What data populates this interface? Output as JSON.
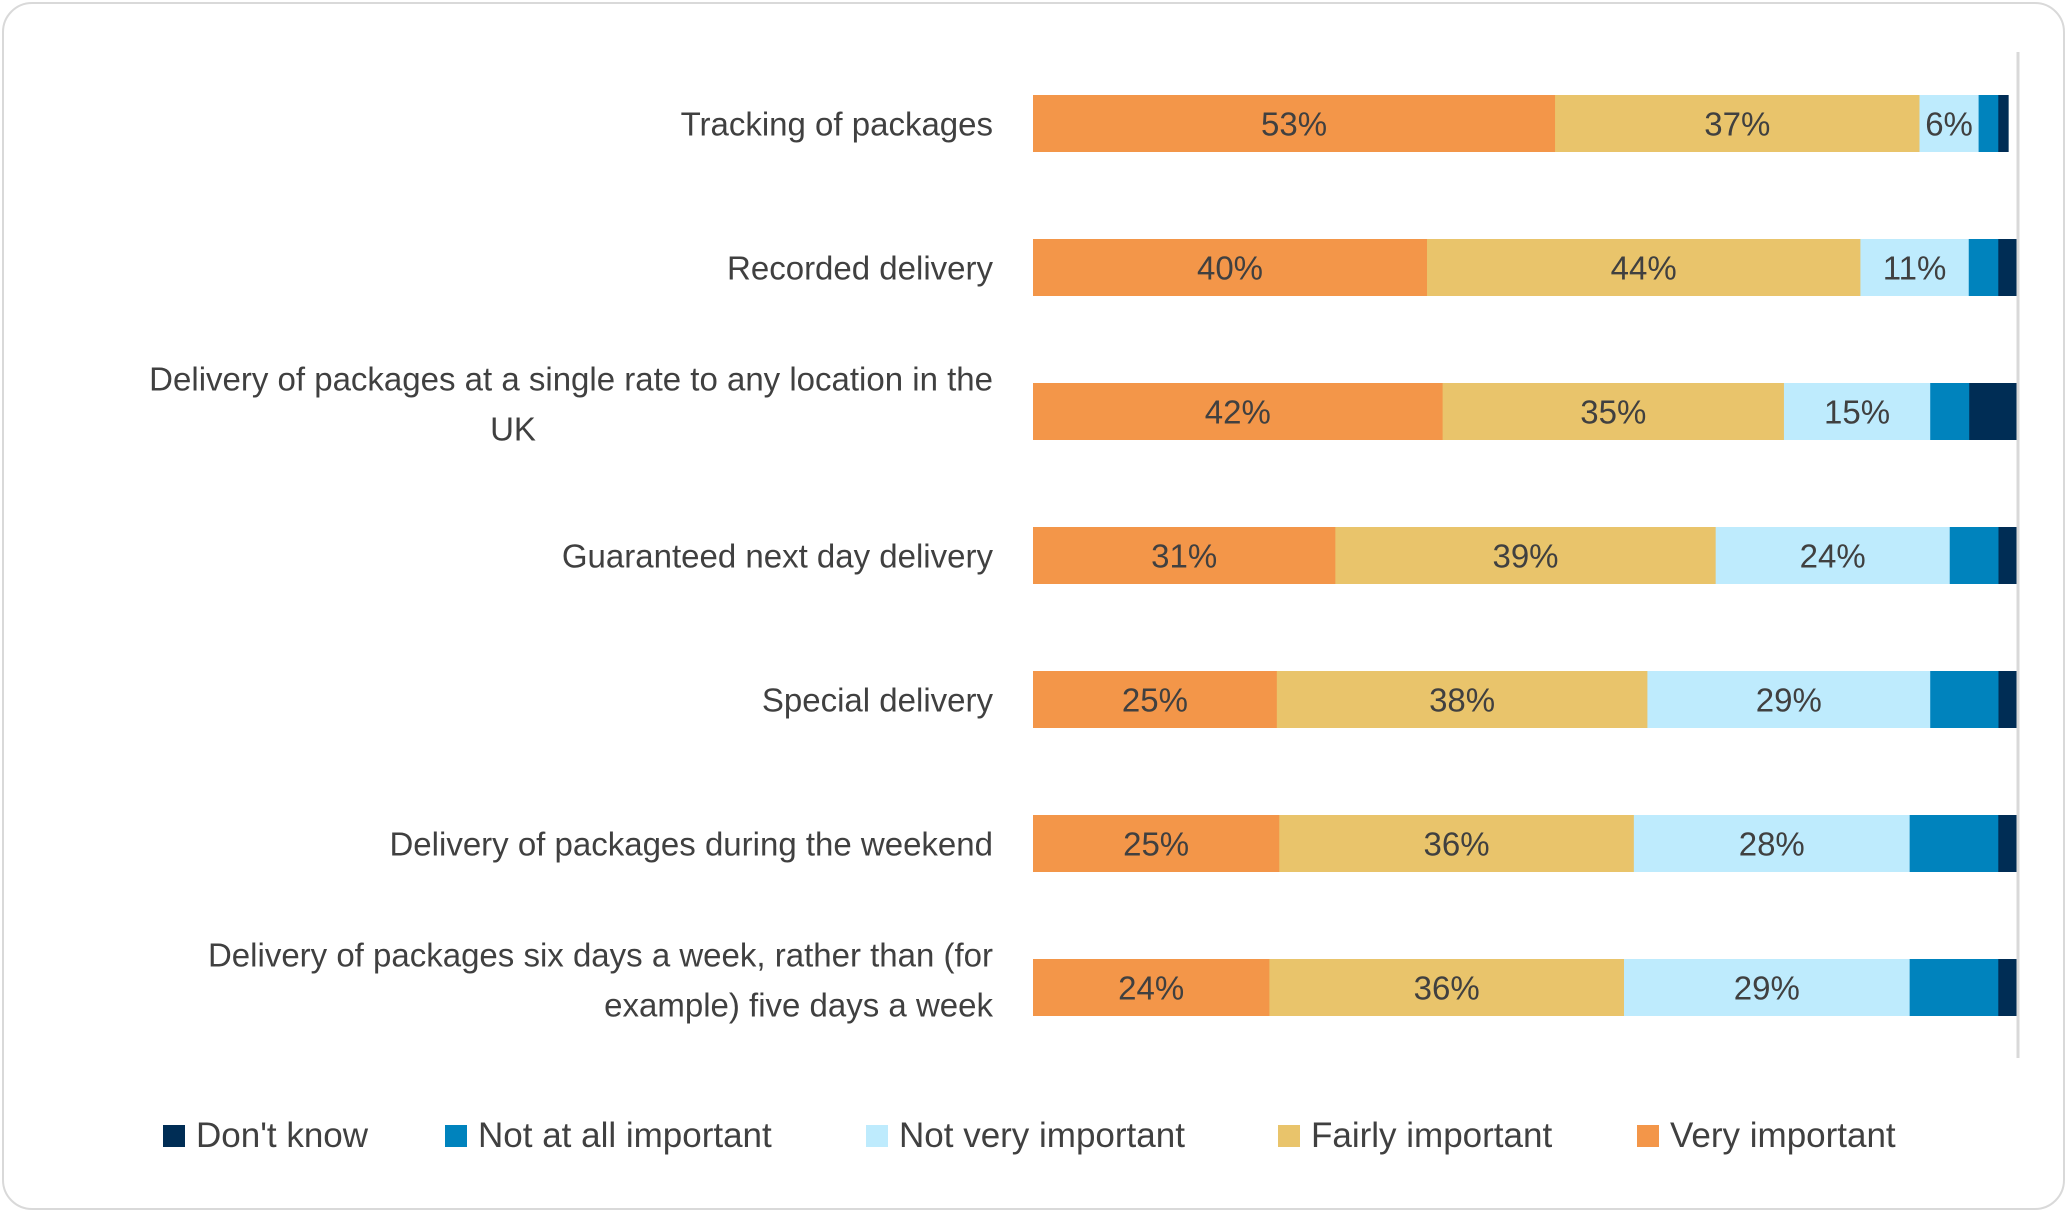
{
  "chart_data": {
    "type": "bar",
    "orientation": "horizontal",
    "stacked": true,
    "percent_stacked": true,
    "categories": [
      "Tracking of packages",
      "Recorded delivery",
      "Delivery of packages at a single rate to any location in the UK",
      "Guaranteed next day delivery",
      "Special delivery",
      "Delivery of packages during the weekend",
      "Delivery of packages six days a week, rather than (for example) five days a week"
    ],
    "category_lines": [
      [
        "Tracking of packages"
      ],
      [
        "Recorded delivery"
      ],
      [
        "Delivery of packages at a single rate to any location in the",
        "UK"
      ],
      [
        "Guaranteed next day delivery"
      ],
      [
        "Special delivery"
      ],
      [
        "Delivery of packages during the weekend"
      ],
      [
        "Delivery of packages six days a week, rather than (for",
        "example) five days a week"
      ]
    ],
    "series": [
      {
        "name": "Very important",
        "color": "#F39649",
        "values": [
          53,
          40,
          42,
          31,
          25,
          25,
          24
        ],
        "labeled": true
      },
      {
        "name": "Fairly important",
        "color": "#E9C46B",
        "values": [
          37,
          44,
          35,
          39,
          38,
          36,
          36
        ],
        "labeled": true
      },
      {
        "name": "Not very important",
        "color": "#BEEBFD",
        "values": [
          6,
          11,
          15,
          24,
          29,
          28,
          29
        ],
        "labeled": true
      },
      {
        "name": "Not at all important",
        "color": "#0083BD",
        "values": [
          2,
          3,
          4,
          5,
          7,
          9,
          9
        ],
        "labeled": false
      },
      {
        "name": "Don't know",
        "color": "#002D55",
        "values": [
          1,
          2,
          5,
          2,
          2,
          2,
          2
        ],
        "labeled": false
      }
    ],
    "legend_order": [
      "Don't know",
      "Not at all important",
      "Not very important",
      "Fairly important",
      "Very important"
    ],
    "legend_position": "bottom",
    "grid": false,
    "xlim": [
      0,
      100
    ]
  }
}
